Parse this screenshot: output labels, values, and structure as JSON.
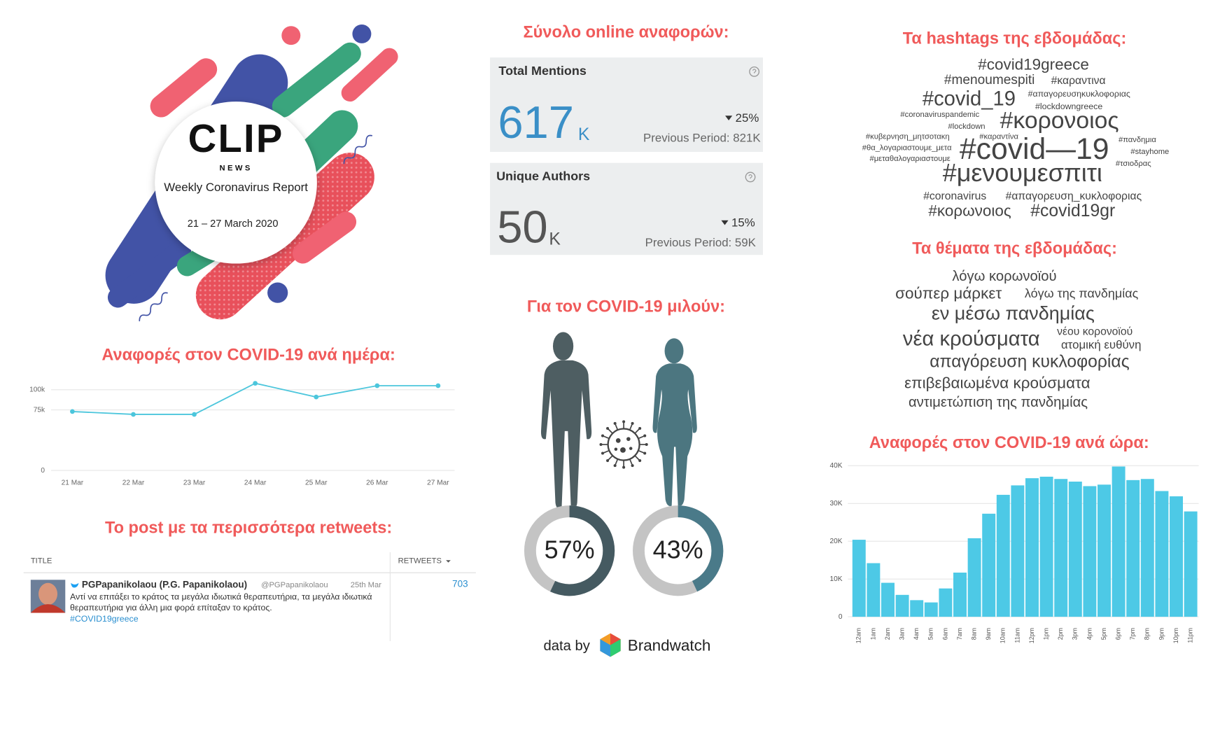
{
  "logo": {
    "brand": "CLIP",
    "sub": "NEWS",
    "report": "Weekly Coronavirus Report",
    "dates": "21 – 27 March 2020"
  },
  "mentions": {
    "title": "Σύνολο online αναφορών:",
    "cards": [
      {
        "label": "Total Mentions",
        "value": 617,
        "unit": "K",
        "change": "25%",
        "previous": "Previous Period: 821K"
      },
      {
        "label": "Unique Authors",
        "value": 50,
        "unit": "K",
        "change": "15%",
        "previous": "Previous Period: 59K"
      }
    ]
  },
  "hashtags": {
    "title": "Τα hashtags της εβδομάδας:",
    "words": [
      "#covid19greece",
      "#menoumespiti",
      "#καραντινα",
      "#covid_19",
      "#απαγορευσηκυκλοφοριας",
      "#lockdowngreece",
      "#coronaviruspandemic",
      "#κορονοιος",
      "#lockdown",
      "#κυβερνηση_μητσοτακη",
      "#καραντίνα",
      "#πανδημια",
      "#θα_λογαριαστουμε_μετα",
      "#covid—19",
      "#stayhome",
      "#μεταθαλογαριαστουμε",
      "#τσιοδρας",
      "#μενουμεσπιτι",
      "#coronavirus",
      "#απαγορευση_κυκλοφοριας",
      "#κορωνοιος",
      "#covid19gr"
    ]
  },
  "topics": {
    "title": "Τα θέματα της εβδομάδας:",
    "words": [
      "λόγω κορωνοϊού",
      "σούπερ μάρκετ",
      "λόγω της πανδημίας",
      "εν μέσω πανδημίας",
      "νέου κορονοϊού",
      "νέα κρούσματα",
      "ατομική ευθύνη",
      "απαγόρευση κυκλοφορίας",
      "επιβεβαιωμένα κρούσματα",
      "αντιμετώπιση της πανδημίας"
    ]
  },
  "retweet": {
    "title": "Το post με τα περισσότερα retweets:",
    "columns": [
      "TITLE",
      "RETWEETS"
    ],
    "author": "PGPapanikolaou (P.G. Papanikolaou)",
    "handle": "@PGPapanikolaou",
    "date": "25th Mar",
    "text": "Αντί να επιτάξει το κράτος τα μεγάλα ιδιωτικά θεραπευτήρια, τα μεγάλα ιδιωτικά θεραπευτήρια για άλλη μια φορά επίταξαν το κράτος.",
    "hashtag": "#COVID19greece",
    "retweets": 703
  },
  "footer": {
    "prefix": "data by",
    "brand": "Brandwatch"
  },
  "chart_data": [
    {
      "type": "line",
      "title": "Αναφορές στον COVID-19 ανά ημέρα:",
      "categories": [
        "21 Mar",
        "22 Mar",
        "23 Mar",
        "24 Mar",
        "25 Mar",
        "26 Mar",
        "27 Mar"
      ],
      "values": [
        73000,
        69500,
        69500,
        108000,
        91000,
        105000,
        105000
      ],
      "color": "#4cc6dc",
      "ylim": [
        0,
        115000
      ],
      "yticks": [
        0,
        {
          "value": 75000,
          "label": "75k"
        },
        {
          "value": 100000,
          "label": "100k"
        }
      ],
      "grid": true
    },
    {
      "type": "bar",
      "title": "Αναφορές στον COVID-19 ανά ώρα:",
      "categories": [
        "12am",
        "1am",
        "2am",
        "3am",
        "4am",
        "5am",
        "6am",
        "7am",
        "8am",
        "9am",
        "10am",
        "11am",
        "12pm",
        "1pm",
        "2pm",
        "3pm",
        "4pm",
        "5pm",
        "6pm",
        "7pm",
        "8pm",
        "9pm",
        "10pm",
        "11pm"
      ],
      "values": [
        20400,
        14200,
        9000,
        5800,
        4400,
        3800,
        7500,
        11700,
        20800,
        27300,
        32300,
        34800,
        36700,
        37100,
        36500,
        35800,
        34600,
        35000,
        39800,
        36200,
        36500,
        33300,
        31900,
        27900
      ],
      "color": "#4dc9e6",
      "ylim": [
        0,
        40000
      ],
      "yticks": [
        0,
        {
          "value": 10000,
          "label": "10K"
        },
        {
          "value": 20000,
          "label": "20K"
        },
        {
          "value": 30000,
          "label": "30K"
        },
        {
          "value": 40000,
          "label": "40K"
        }
      ],
      "grid": true
    },
    {
      "type": "donut",
      "title": "Για τον COVID-19 μιλούν:",
      "values": [
        57,
        43
      ],
      "value_labels": [
        "57%",
        "43%"
      ],
      "colors": [
        "#455a61",
        "#4a7a89"
      ],
      "track_color": "#c4c4c4"
    }
  ]
}
